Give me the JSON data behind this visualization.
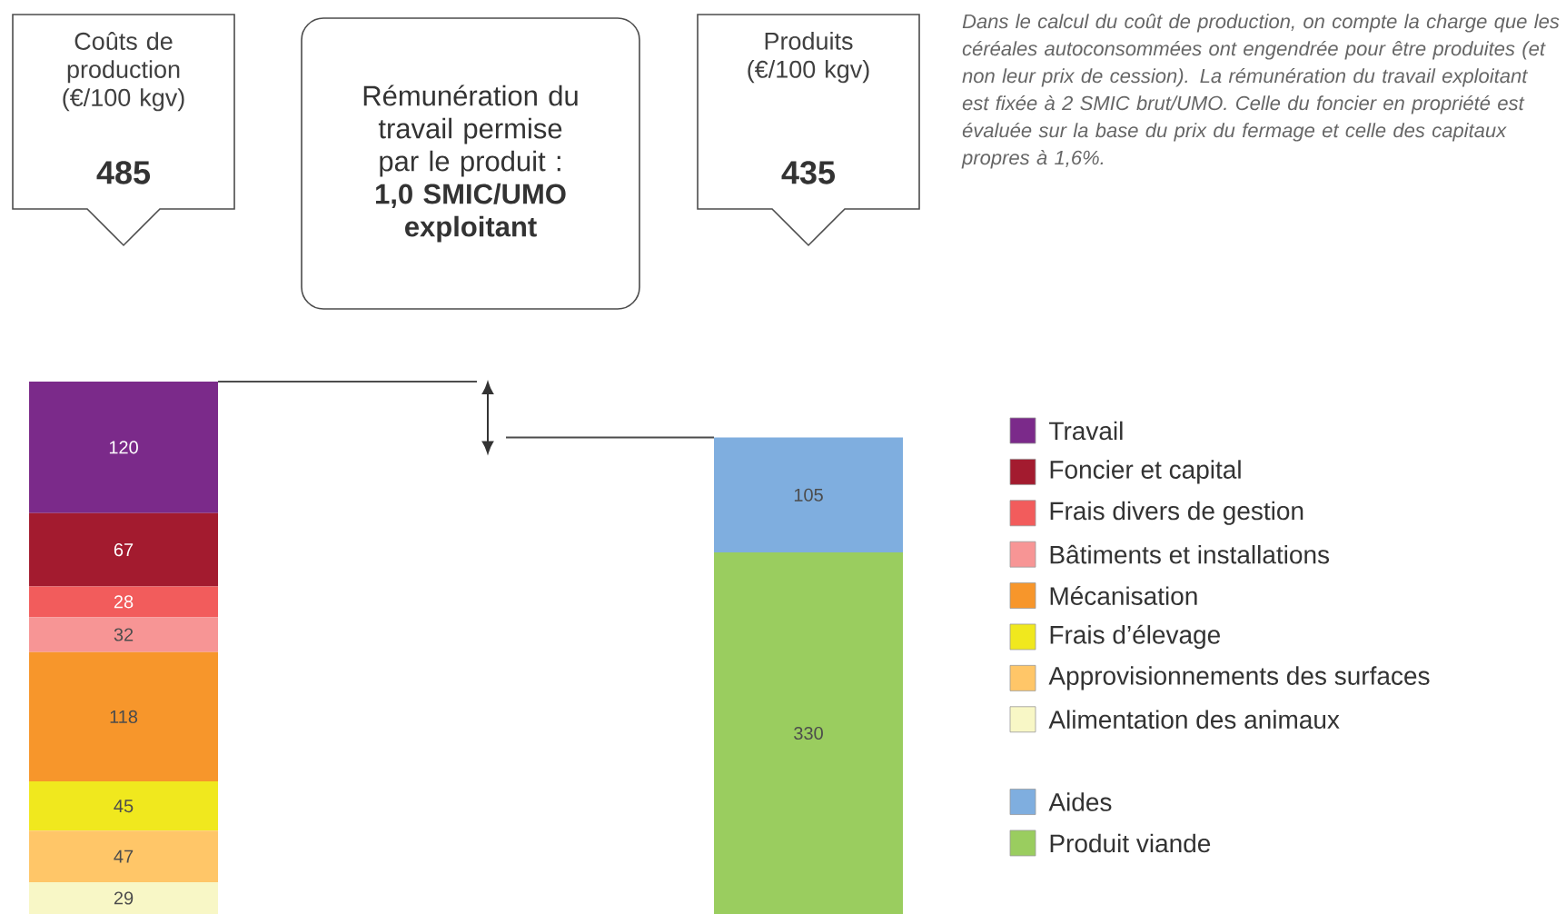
{
  "chart_data": {
    "type": "bar",
    "stacked": true,
    "data_labels": true,
    "legend": "right",
    "categories": [
      "Coûts de production (€/100 kgv)",
      "Produits (€/100 kgv)"
    ],
    "annotations": [
      "Rémunération du travail permise par le produit : **1,0 SMIC/UMO exploitant**",
      "*Dans le calcul du coût de production, on compte la charge que les céréales autoconsommées ont engendrée pour être produites (et non leur prix de cession). La rémunération du travail exploitant est fixée à 2 SMIC brut/UMO. Celle du foncier en propriété est évaluée sur la base du prix du fermage et celle des capitaux propres à 1,6%.*",
      "485",
      "435"
    ],
    "series": [
      {
        "name": "Alimentation des animaux",
        "color": "#f8f7c6",
        "values": [
          29,
          null
        ]
      },
      {
        "name": "Approvisionnements des surfaces",
        "color": "#ffc668",
        "values": [
          47,
          null
        ]
      },
      {
        "name": "Frais d’élevage",
        "color": "#f0e81e",
        "values": [
          45,
          null
        ]
      },
      {
        "name": "Mécanisation",
        "color": "#f7962b",
        "values": [
          118,
          null
        ]
      },
      {
        "name": "Bâtiments et installations",
        "color": "#f79595",
        "values": [
          32,
          null
        ]
      },
      {
        "name": "Frais divers de gestion",
        "color": "#f25c5c",
        "values": [
          28,
          null
        ]
      },
      {
        "name": "Foncier et capital",
        "color": "#a31b2f",
        "values": [
          67,
          null
        ]
      },
      {
        "name": "Travail",
        "color": "#7b2a8a",
        "values": [
          120,
          null
        ]
      },
      {
        "name": "Produit viande",
        "color": "#9acd5f",
        "values": [
          null,
          330
        ]
      },
      {
        "name": "Aides",
        "color": "#7faedf",
        "values": [
          null,
          105
        ]
      }
    ]
  }
}
